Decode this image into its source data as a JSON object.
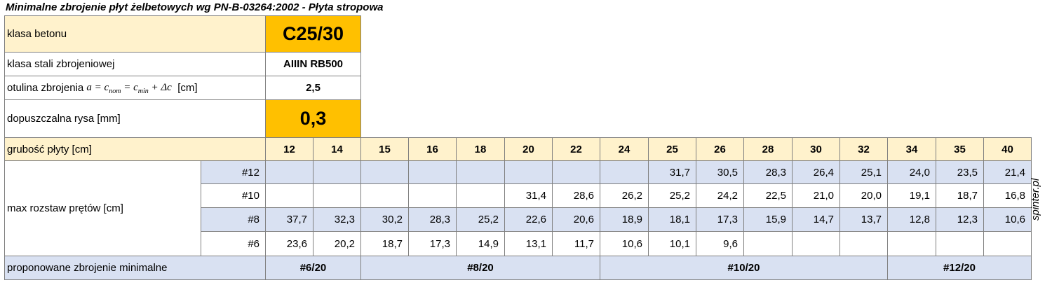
{
  "title": "Minimalne zbrojenie płyt żelbetowych wg PN-B-03264:2002 - Płyta stropowa",
  "params": {
    "concrete_label": "klasa betonu",
    "concrete_value": "C25/30",
    "steel_label": "klasa stali zbrojeniowej",
    "steel_value": "AIIIN RB500",
    "cover_label_prefix": "otulina zbrojenia",
    "cover_formula": {
      "a": "a",
      "eq1": "=",
      "c1": "c",
      "c1_sub": "nom",
      "eq2": "=",
      "c2": "c",
      "c2_sub": "min",
      "plus": "+",
      "delta": "Δc"
    },
    "cover_unit": "[cm]",
    "cover_value": "2,5",
    "crack_label": "dopuszczalna rysa [mm]",
    "crack_value": "0,3"
  },
  "thickness": {
    "label": "grubość płyty [cm]",
    "values": [
      "12",
      "14",
      "15",
      "16",
      "18",
      "20",
      "22",
      "24",
      "25",
      "26",
      "28",
      "30",
      "32",
      "34",
      "35",
      "40"
    ]
  },
  "spacing": {
    "label": "max rozstaw prętów [cm]",
    "rows": [
      {
        "bar": "#12",
        "values": [
          "",
          "",
          "",
          "",
          "",
          "",
          "",
          "",
          "31,7",
          "30,5",
          "28,3",
          "26,4",
          "25,1",
          "24,0",
          "23,5",
          "21,4"
        ]
      },
      {
        "bar": "#10",
        "values": [
          "",
          "",
          "",
          "",
          "",
          "31,4",
          "28,6",
          "26,2",
          "25,2",
          "24,2",
          "22,5",
          "21,0",
          "20,0",
          "19,1",
          "18,7",
          "16,8"
        ]
      },
      {
        "bar": "#8",
        "values": [
          "37,7",
          "32,3",
          "30,2",
          "28,3",
          "25,2",
          "22,6",
          "20,6",
          "18,9",
          "18,1",
          "17,3",
          "15,9",
          "14,7",
          "13,7",
          "12,8",
          "12,3",
          "10,6"
        ]
      },
      {
        "bar": "#6",
        "values": [
          "23,6",
          "20,2",
          "18,7",
          "17,3",
          "14,9",
          "13,1",
          "11,7",
          "10,6",
          "10,1",
          "9,6",
          "",
          "",
          "",
          "",
          "",
          ""
        ]
      }
    ]
  },
  "proposed": {
    "label": "proponowane zbrojenie minimalne",
    "groups": [
      {
        "span": 2,
        "text": "#6/20"
      },
      {
        "span": 5,
        "text": "#8/20"
      },
      {
        "span": 6,
        "text": "#10/20"
      },
      {
        "span": 3,
        "text": "#12/20"
      }
    ]
  },
  "watermark": "spinter.pl"
}
